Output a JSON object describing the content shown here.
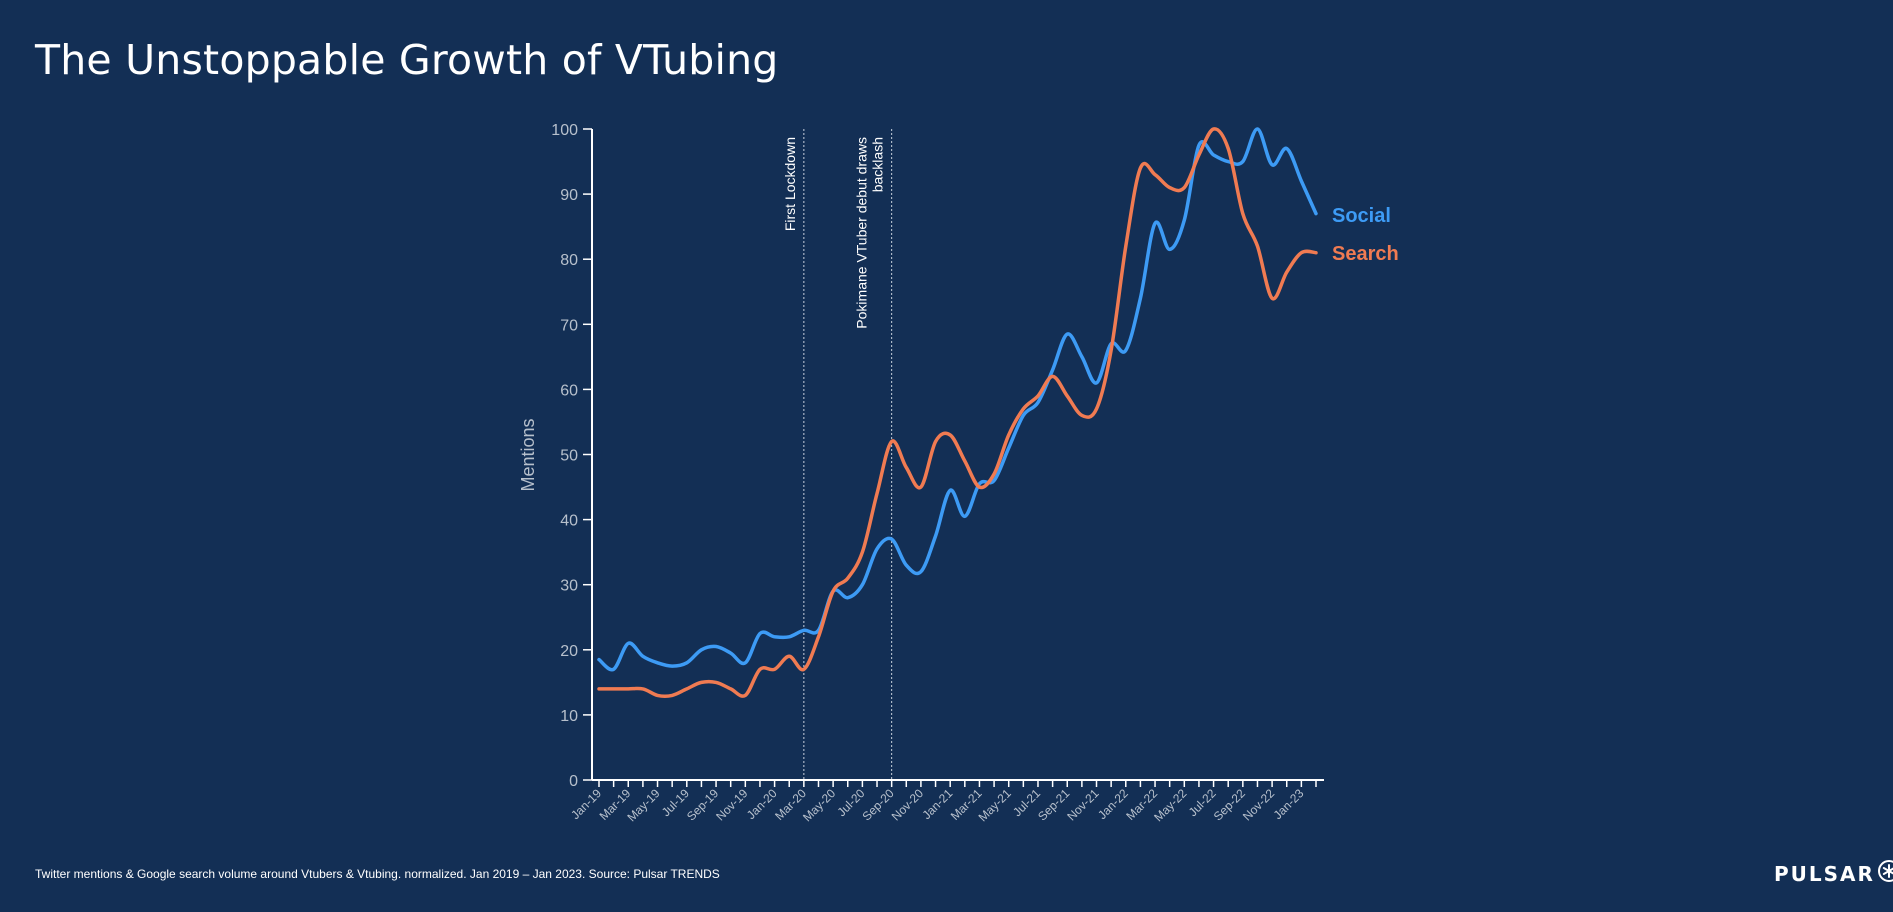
{
  "title": "The Unstoppable Growth of VTubing",
  "footer": "Twitter mentions & Google search volume around Vtubers & Vtubing. normalized. Jan 2019 – Jan 2023. Source: Pulsar TRENDS",
  "brand": {
    "name": "PULSAR",
    "logo_icon": "asterisk-circle-icon"
  },
  "colors": {
    "background": "#132f55",
    "social": "#3d9bf5",
    "search": "#f07b52",
    "axis": "#ffffff",
    "tick_label": "#b7c0cc"
  },
  "chart_data": {
    "type": "line",
    "title": "The Unstoppable Growth of VTubing",
    "xlabel": "",
    "ylabel": "Mentions",
    "ylim": [
      0,
      100
    ],
    "yticks": [
      0,
      10,
      20,
      30,
      40,
      50,
      60,
      70,
      80,
      90,
      100
    ],
    "grid": false,
    "legend": "right, at line ends",
    "x_tick_labels": [
      "Jan-19",
      "Mar-19",
      "May-19",
      "Jul-19",
      "Sep-19",
      "Nov-19",
      "Jan-20",
      "Mar-20",
      "May-20",
      "Jul-20",
      "Sep-20",
      "Nov-20",
      "Jan-21",
      "Mar-21",
      "May-21",
      "Jul-21",
      "Sep-21",
      "Nov-21",
      "Jan-22",
      "Mar-22",
      "May-22",
      "Jul-22",
      "Sep-22",
      "Nov-22",
      "Jan-23"
    ],
    "months": [
      "Jan-19",
      "Feb-19",
      "Mar-19",
      "Apr-19",
      "May-19",
      "Jun-19",
      "Jul-19",
      "Aug-19",
      "Sep-19",
      "Oct-19",
      "Nov-19",
      "Dec-19",
      "Jan-20",
      "Feb-20",
      "Mar-20",
      "Apr-20",
      "May-20",
      "Jun-20",
      "Jul-20",
      "Aug-20",
      "Sep-20",
      "Oct-20",
      "Nov-20",
      "Dec-20",
      "Jan-21",
      "Feb-21",
      "Mar-21",
      "Apr-21",
      "May-21",
      "Jun-21",
      "Jul-21",
      "Aug-21",
      "Sep-21",
      "Oct-21",
      "Nov-21",
      "Dec-21",
      "Jan-22",
      "Feb-22",
      "Mar-22",
      "Apr-22",
      "May-22",
      "Jun-22",
      "Jul-22",
      "Aug-22",
      "Sep-22",
      "Oct-22",
      "Nov-22",
      "Dec-22",
      "Jan-23",
      "Feb-23"
    ],
    "series": [
      {
        "name": "Social",
        "color": "#3d9bf5",
        "values": [
          18.5,
          17,
          21,
          19,
          18,
          17.5,
          18,
          20,
          20.5,
          19.5,
          18,
          22.5,
          22,
          22,
          23,
          23,
          29,
          28,
          30,
          35.5,
          37,
          33,
          32,
          37.5,
          44.5,
          40.5,
          45.5,
          46,
          51,
          56,
          58,
          63,
          68.5,
          65,
          61,
          67,
          66,
          74,
          85.5,
          81.5,
          86,
          97.5,
          96,
          95,
          95,
          100,
          94.5,
          97,
          92,
          87
        ]
      },
      {
        "name": "Search",
        "color": "#f07b52",
        "values": [
          14,
          14,
          14,
          14,
          13,
          13,
          14,
          15,
          15,
          14,
          13,
          17,
          17,
          19,
          17,
          22,
          29,
          31,
          35,
          44,
          52,
          48,
          45,
          52,
          53,
          49,
          45,
          47,
          53,
          57,
          59,
          62,
          59,
          56,
          57,
          66,
          82,
          94,
          93,
          91,
          91,
          96,
          100,
          97,
          87,
          82,
          74,
          78,
          81,
          81
        ]
      }
    ],
    "annotations": [
      {
        "x": "Mar-20",
        "lines": [
          "First Lockdown"
        ]
      },
      {
        "x": "Sep-20",
        "lines": [
          "Pokimane VTuber debut draws",
          "backlash"
        ]
      }
    ]
  }
}
